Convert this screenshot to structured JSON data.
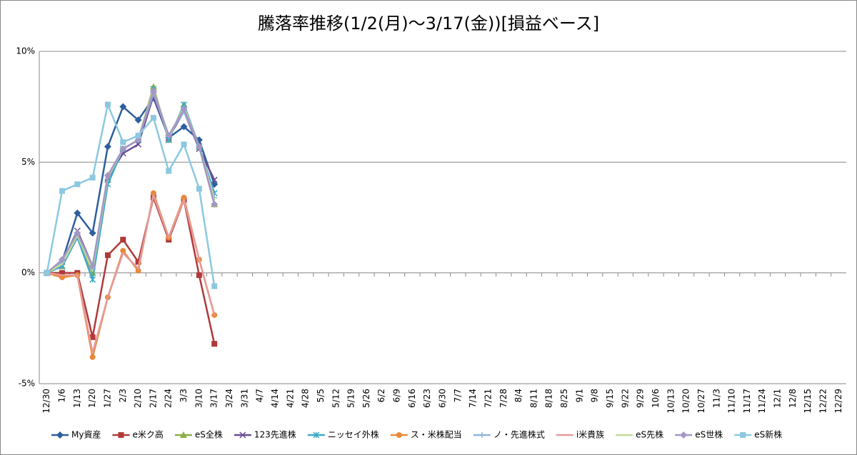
{
  "chart_data": {
    "type": "line",
    "title": "騰落率推移(1/2(月)～3/17(金))[損益ベース]",
    "categories": [
      "12/30",
      "1/6",
      "1/13",
      "1/20",
      "1/27",
      "2/3",
      "2/10",
      "2/17",
      "2/24",
      "3/3",
      "3/10",
      "3/17",
      "3/24",
      "3/31",
      "4/7",
      "4/14",
      "4/21",
      "4/28",
      "5/5",
      "5/12",
      "5/19",
      "5/26",
      "6/2",
      "6/9",
      "6/16",
      "6/23",
      "6/30",
      "7/7",
      "7/14",
      "7/21",
      "7/28",
      "8/4",
      "8/11",
      "8/18",
      "8/25",
      "9/1",
      "9/8",
      "9/15",
      "9/22",
      "9/29",
      "10/6",
      "10/13",
      "10/20",
      "10/27",
      "11/3",
      "11/10",
      "11/17",
      "11/24",
      "12/1",
      "12/8",
      "12/15",
      "12/22",
      "12/29"
    ],
    "ylim": [
      -5,
      10
    ],
    "yticks": [
      {
        "value": -5,
        "label": "-5%"
      },
      {
        "value": 0,
        "label": "0%"
      },
      {
        "value": 5,
        "label": "5%"
      },
      {
        "value": 10,
        "label": "10%"
      }
    ],
    "grid": true,
    "legend": "bottom",
    "series": [
      {
        "name": "My資産",
        "color": "#2e5f9e",
        "marker": "diamond",
        "values": [
          0,
          0.5,
          2.7,
          1.8,
          5.7,
          7.5,
          6.9,
          7.9,
          6.1,
          6.6,
          6.0,
          4.0,
          null,
          null,
          null,
          null,
          null,
          null,
          null,
          null,
          null,
          null,
          null,
          null,
          null,
          null,
          null,
          null,
          null,
          null,
          null,
          null,
          null,
          null,
          null,
          null,
          null,
          null,
          null,
          null,
          null,
          null,
          null,
          null,
          null,
          null,
          null,
          null,
          null,
          null,
          null,
          null,
          null
        ]
      },
      {
        "name": "e米ク高",
        "color": "#b03a3a",
        "marker": "square",
        "values": [
          0,
          0,
          0,
          -2.9,
          0.8,
          1.5,
          0.5,
          3.4,
          1.5,
          3.3,
          -0.1,
          -3.2,
          null,
          null,
          null,
          null,
          null,
          null,
          null,
          null,
          null,
          null,
          null,
          null,
          null,
          null,
          null,
          null,
          null,
          null,
          null,
          null,
          null,
          null,
          null,
          null,
          null,
          null,
          null,
          null,
          null,
          null,
          null,
          null,
          null,
          null,
          null,
          null,
          null,
          null,
          null,
          null,
          null
        ]
      },
      {
        "name": "eS全株",
        "color": "#8aad45",
        "marker": "triangle",
        "values": [
          0,
          0.3,
          1.6,
          0,
          4.2,
          5.6,
          6.0,
          8.4,
          6.0,
          7.6,
          5.7,
          3.1,
          null,
          null,
          null,
          null,
          null,
          null,
          null,
          null,
          null,
          null,
          null,
          null,
          null,
          null,
          null,
          null,
          null,
          null,
          null,
          null,
          null,
          null,
          null,
          null,
          null,
          null,
          null,
          null,
          null,
          null,
          null,
          null,
          null,
          null,
          null,
          null,
          null,
          null,
          null,
          null,
          null
        ]
      },
      {
        "name": "123先進株",
        "color": "#6a4c93",
        "marker": "x",
        "values": [
          0,
          0.5,
          1.9,
          0.3,
          4.3,
          5.4,
          5.8,
          8.0,
          6.1,
          7.3,
          5.6,
          4.2,
          null,
          null,
          null,
          null,
          null,
          null,
          null,
          null,
          null,
          null,
          null,
          null,
          null,
          null,
          null,
          null,
          null,
          null,
          null,
          null,
          null,
          null,
          null,
          null,
          null,
          null,
          null,
          null,
          null,
          null,
          null,
          null,
          null,
          null,
          null,
          null,
          null,
          null,
          null,
          null,
          null
        ]
      },
      {
        "name": "ニッセイ外株",
        "color": "#3fa9c9",
        "marker": "star",
        "values": [
          0,
          0.3,
          1.6,
          -0.3,
          4.0,
          5.6,
          6.0,
          8.3,
          6.0,
          7.6,
          5.7,
          3.6,
          null,
          null,
          null,
          null,
          null,
          null,
          null,
          null,
          null,
          null,
          null,
          null,
          null,
          null,
          null,
          null,
          null,
          null,
          null,
          null,
          null,
          null,
          null,
          null,
          null,
          null,
          null,
          null,
          null,
          null,
          null,
          null,
          null,
          null,
          null,
          null,
          null,
          null,
          null,
          null,
          null
        ]
      },
      {
        "name": "ス・米株配当",
        "color": "#e8893a",
        "marker": "circle",
        "values": [
          0,
          -0.2,
          -0.1,
          -3.8,
          -1.1,
          1.0,
          0.1,
          3.6,
          1.6,
          3.4,
          0.6,
          -1.9,
          null,
          null,
          null,
          null,
          null,
          null,
          null,
          null,
          null,
          null,
          null,
          null,
          null,
          null,
          null,
          null,
          null,
          null,
          null,
          null,
          null,
          null,
          null,
          null,
          null,
          null,
          null,
          null,
          null,
          null,
          null,
          null,
          null,
          null,
          null,
          null,
          null,
          null,
          null,
          null,
          null
        ]
      },
      {
        "name": "ノ・先進株式",
        "color": "#8fb3de",
        "marker": "plus",
        "values": [
          0,
          0.5,
          1.8,
          0.2,
          4.3,
          5.6,
          6.0,
          8.1,
          6.2,
          7.3,
          5.7,
          3.4,
          null,
          null,
          null,
          null,
          null,
          null,
          null,
          null,
          null,
          null,
          null,
          null,
          null,
          null,
          null,
          null,
          null,
          null,
          null,
          null,
          null,
          null,
          null,
          null,
          null,
          null,
          null,
          null,
          null,
          null,
          null,
          null,
          null,
          null,
          null,
          null,
          null,
          null,
          null,
          null,
          null
        ]
      },
      {
        "name": "i米貴族",
        "color": "#e59a9a",
        "marker": "none",
        "values": [
          0,
          -0.1,
          -0.1,
          -3.6,
          -1.1,
          0.9,
          0.2,
          3.5,
          1.6,
          3.3,
          0.6,
          -1.9,
          null,
          null,
          null,
          null,
          null,
          null,
          null,
          null,
          null,
          null,
          null,
          null,
          null,
          null,
          null,
          null,
          null,
          null,
          null,
          null,
          null,
          null,
          null,
          null,
          null,
          null,
          null,
          null,
          null,
          null,
          null,
          null,
          null,
          null,
          null,
          null,
          null,
          null,
          null,
          null,
          null
        ]
      },
      {
        "name": "eS先株",
        "color": "#c3d99a",
        "marker": "none",
        "values": [
          0,
          0.4,
          1.7,
          0.1,
          4.3,
          5.6,
          6.0,
          8.3,
          6.1,
          7.5,
          5.7,
          3.3,
          null,
          null,
          null,
          null,
          null,
          null,
          null,
          null,
          null,
          null,
          null,
          null,
          null,
          null,
          null,
          null,
          null,
          null,
          null,
          null,
          null,
          null,
          null,
          null,
          null,
          null,
          null,
          null,
          null,
          null,
          null,
          null,
          null,
          null,
          null,
          null,
          null,
          null,
          null,
          null,
          null
        ]
      },
      {
        "name": "eS世株",
        "color": "#a597c4",
        "marker": "diamond",
        "values": [
          0,
          0.6,
          1.8,
          0.3,
          4.4,
          5.6,
          6.0,
          8.2,
          6.2,
          7.4,
          5.7,
          3.1,
          null,
          null,
          null,
          null,
          null,
          null,
          null,
          null,
          null,
          null,
          null,
          null,
          null,
          null,
          null,
          null,
          null,
          null,
          null,
          null,
          null,
          null,
          null,
          null,
          null,
          null,
          null,
          null,
          null,
          null,
          null,
          null,
          null,
          null,
          null,
          null,
          null,
          null,
          null,
          null,
          null
        ]
      },
      {
        "name": "eS新株",
        "color": "#8cc8e0",
        "marker": "square",
        "values": [
          0,
          3.7,
          4.0,
          4.3,
          7.6,
          5.9,
          6.2,
          7.0,
          4.6,
          5.8,
          3.8,
          -0.6,
          null,
          null,
          null,
          null,
          null,
          null,
          null,
          null,
          null,
          null,
          null,
          null,
          null,
          null,
          null,
          null,
          null,
          null,
          null,
          null,
          null,
          null,
          null,
          null,
          null,
          null,
          null,
          null,
          null,
          null,
          null,
          null,
          null,
          null,
          null,
          null,
          null,
          null,
          null,
          null,
          null
        ]
      }
    ]
  }
}
